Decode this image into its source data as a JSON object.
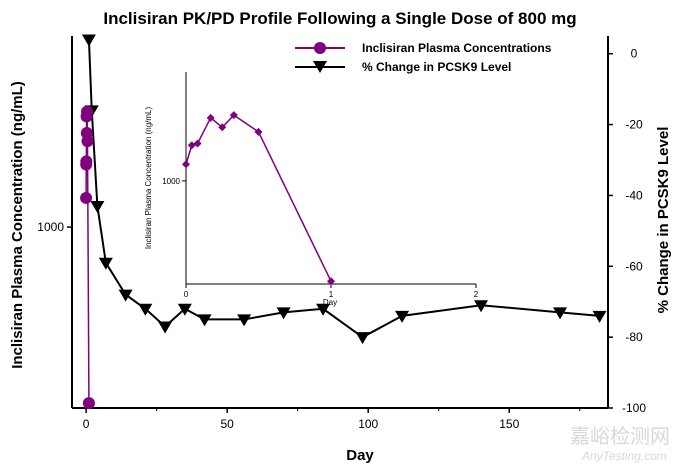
{
  "chart_data": [
    {
      "type": "line",
      "title": "Inclisiran PK/PD Profile Following a Single Dose of 800 mg",
      "xlabel": "Day",
      "ylabel": "Inclisiran Plasma Concentration (ng/mL)",
      "y2label": "% Change in PCSK9 Level",
      "xlim": [
        -5,
        185
      ],
      "xticks": [
        0,
        50,
        100,
        150
      ],
      "ylog": true,
      "ylim": [
        420,
        2500
      ],
      "yticks": [
        1000
      ],
      "y2lim": [
        -100,
        5
      ],
      "y2ticks": [
        0,
        -20,
        -40,
        -60,
        -80,
        -100
      ],
      "legend_position": "top-right",
      "series": [
        {
          "name": "Inclisiran Plasma Concentrations",
          "axis": "left",
          "color": "#800080",
          "marker": "circle",
          "x": [
            0,
            0.04,
            0.08,
            0.17,
            0.25,
            0.33,
            0.5,
            1
          ],
          "y": [
            1150,
            1350,
            1370,
            1700,
            1570,
            1740,
            1510,
            430
          ]
        },
        {
          "name": "% Change in PCSK9 Level",
          "axis": "right",
          "color": "#000000",
          "marker": "triangle-down",
          "x": [
            1,
            2,
            4,
            7,
            14,
            21,
            28,
            35,
            42,
            56,
            70,
            84,
            98,
            112,
            140,
            168,
            182
          ],
          "y": [
            4,
            -16,
            -43,
            -59,
            -68,
            -72,
            -77,
            -72,
            -75,
            -75,
            -73,
            -72,
            -80,
            -74,
            -71,
            -73,
            -74
          ]
        }
      ]
    },
    {
      "type": "line",
      "xlabel": "Day",
      "ylabel": "Inclisiran Plasma Concentration (ng/mL)",
      "xlim": [
        0,
        2
      ],
      "xticks": [
        0,
        1,
        2
      ],
      "ylog": true,
      "ylim": [
        420,
        2500
      ],
      "yticks": [
        1000
      ],
      "series": [
        {
          "color": "#800080",
          "marker": "diamond",
          "x": [
            0,
            0.04,
            0.08,
            0.17,
            0.25,
            0.33,
            0.5,
            1
          ],
          "y": [
            1150,
            1350,
            1370,
            1700,
            1570,
            1740,
            1510,
            430
          ]
        }
      ]
    }
  ],
  "watermark": {
    "cn": "嘉峪检测网",
    "en": "AnyTesting.com"
  }
}
